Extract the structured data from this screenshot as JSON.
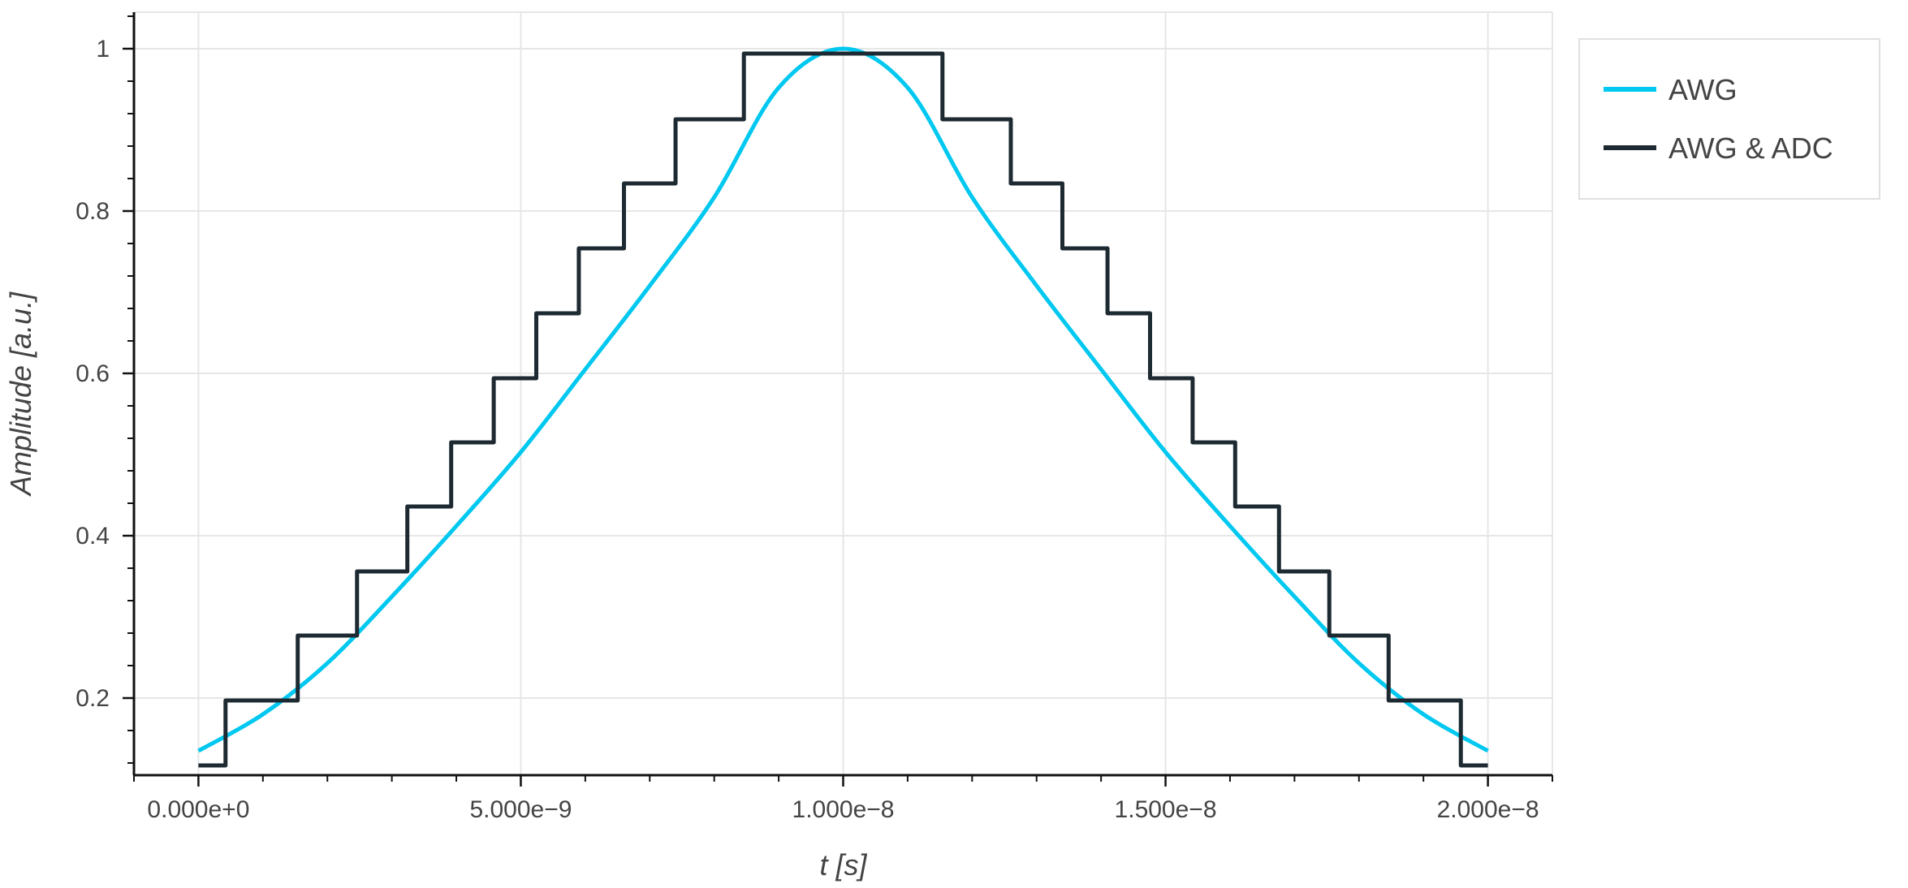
{
  "chart_data": {
    "type": "line",
    "title": "",
    "xlabel": "t [s]",
    "ylabel": "Amplitude [a.u.]",
    "xlim": [
      -1e-09,
      2.1e-08
    ],
    "ylim": [
      0.105,
      1.045
    ],
    "x_ticks": [
      {
        "value": 0,
        "label": "0.000e+0"
      },
      {
        "value": 5e-09,
        "label": "5.000e−9"
      },
      {
        "value": 1e-08,
        "label": "1.000e−8"
      },
      {
        "value": 1.5e-08,
        "label": "1.500e−8"
      },
      {
        "value": 2e-08,
        "label": "2.000e−8"
      }
    ],
    "x_minor_step": 1e-09,
    "y_ticks": [
      {
        "value": 0.2,
        "label": "0.2"
      },
      {
        "value": 0.4,
        "label": "0.4"
      },
      {
        "value": 0.6,
        "label": "0.6"
      },
      {
        "value": 0.8,
        "label": "0.8"
      },
      {
        "value": 1.0,
        "label": "1"
      }
    ],
    "y_minor_step": 0.04,
    "grid": true,
    "legend_position": "top-right-outside",
    "series": [
      {
        "name": "AWG",
        "color": "#00C8F0",
        "x": [
          0,
          1e-09,
          2e-09,
          3e-09,
          4e-09,
          5e-09,
          6e-09,
          7e-09,
          8e-09,
          9e-09,
          1e-08,
          1.1e-08,
          1.2e-08,
          1.3e-08,
          1.4e-08,
          1.5e-08,
          1.6e-08,
          1.7e-08,
          1.8e-08,
          1.9e-08,
          2e-08
        ],
        "y": [
          0.135,
          0.18,
          0.243,
          0.325,
          0.412,
          0.503,
          0.605,
          0.708,
          0.817,
          0.952,
          1.0,
          0.952,
          0.817,
          0.708,
          0.605,
          0.503,
          0.412,
          0.325,
          0.243,
          0.18,
          0.135
        ]
      },
      {
        "name": "AWG & ADC",
        "color": "#1E2A32",
        "step": true,
        "breakpoints_x": [
          0,
          4.2e-10,
          1.54e-09,
          2.46e-09,
          3.24e-09,
          3.92e-09,
          4.58e-09,
          5.24e-09,
          5.9e-09,
          6.6e-09,
          7.4e-09,
          8.46e-09,
          1.154e-08,
          1.26e-08,
          1.34e-08,
          1.41e-08,
          1.476e-08,
          1.542e-08,
          1.608e-08,
          1.676e-08,
          1.754e-08,
          1.846e-08,
          1.958e-08,
          2e-08
        ],
        "levels_y": [
          0.117,
          0.197,
          0.277,
          0.356,
          0.436,
          0.515,
          0.594,
          0.674,
          0.754,
          0.834,
          0.913,
          0.994,
          0.913,
          0.834,
          0.754,
          0.674,
          0.594,
          0.515,
          0.436,
          0.356,
          0.277,
          0.197,
          0.117
        ]
      }
    ]
  }
}
